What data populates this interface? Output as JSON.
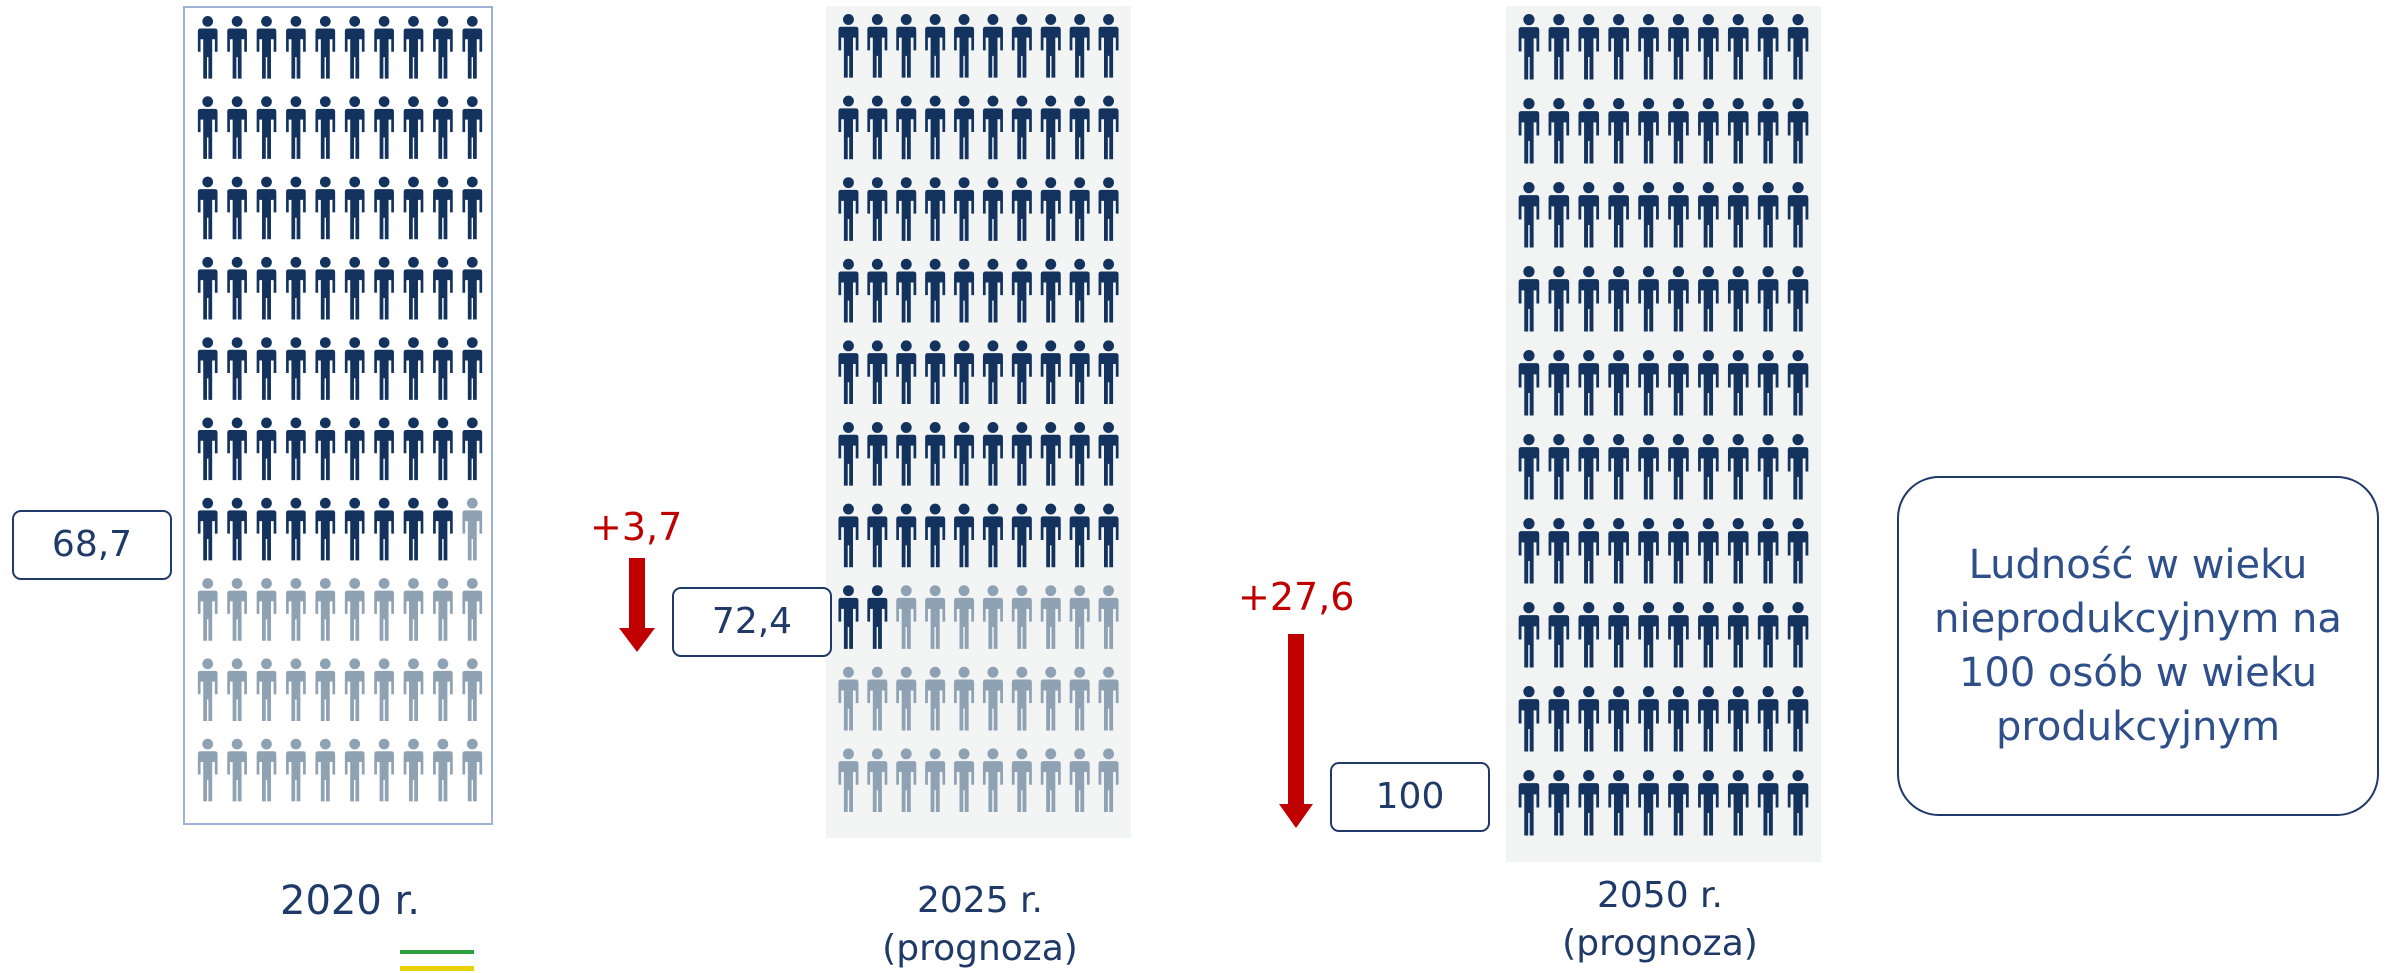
{
  "chart_data": {
    "type": "pictogram",
    "unit_per_icon": 1,
    "icons_total": 100,
    "colors": {
      "filled": "#13335e",
      "empty": "#8ea2b3",
      "arrow": "#c00000",
      "text": "#1f3a68"
    },
    "series": [
      {
        "year_label": "2020 r.",
        "sublabel": "",
        "value": 68.7,
        "value_label": "68,7"
      },
      {
        "year_label": "2025 r.",
        "sublabel": "(prognoza)",
        "value": 72.4,
        "value_label": "72,4"
      },
      {
        "year_label": "2050 r.",
        "sublabel": "(prognoza)",
        "value": 100,
        "value_label": "100"
      }
    ],
    "changes": [
      {
        "from": "2020 r.",
        "to": "2025 r.",
        "delta": 3.7,
        "label": "+3,7"
      },
      {
        "from": "2025 r.",
        "to": "2050 r.",
        "delta": 27.6,
        "label": "+27,6"
      }
    ]
  },
  "info_text": "Ludność w wieku nieprodukcyjnym na 100 osób w wieku produkcyjnym"
}
